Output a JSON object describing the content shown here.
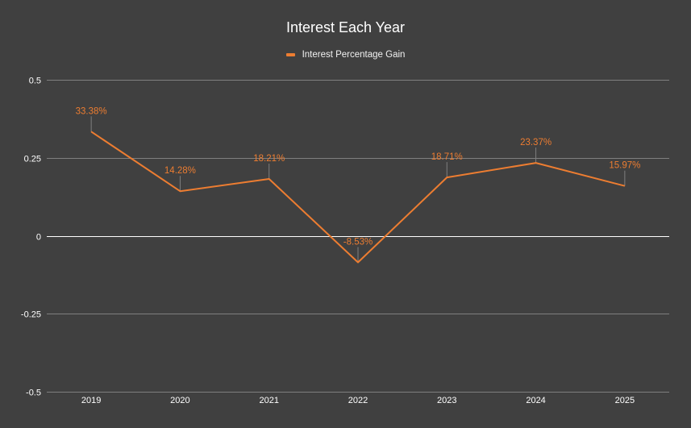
{
  "chart": {
    "title": "Interest Each Year",
    "legend_label": "Interest Percentage Gain"
  },
  "colors": {
    "background": "#404040",
    "series": "#ED7D31",
    "gridline": "#7f7f7f",
    "zero_line": "#ffffff",
    "text": "#ffffff"
  },
  "chart_data": {
    "type": "line",
    "title": "Interest Each Year",
    "xlabel": "",
    "ylabel": "",
    "categories": [
      "2019",
      "2020",
      "2021",
      "2022",
      "2023",
      "2024",
      "2025"
    ],
    "series": [
      {
        "name": "Interest Percentage Gain",
        "values": [
          0.3338,
          0.1428,
          0.1821,
          -0.0853,
          0.1871,
          0.2337,
          0.1597
        ],
        "data_labels": [
          "33.38%",
          "14.28%",
          "18.21%",
          "-8.53%",
          "18.71%",
          "23.37%",
          "15.97%"
        ]
      }
    ],
    "ylim": [
      -0.5,
      0.5
    ],
    "yticks": [
      "0.5",
      "0.25",
      "0",
      "-0.25",
      "-0.5"
    ],
    "ytick_values": [
      0.5,
      0.25,
      0,
      -0.25,
      -0.5
    ],
    "grid": true,
    "legend_position": "top"
  }
}
